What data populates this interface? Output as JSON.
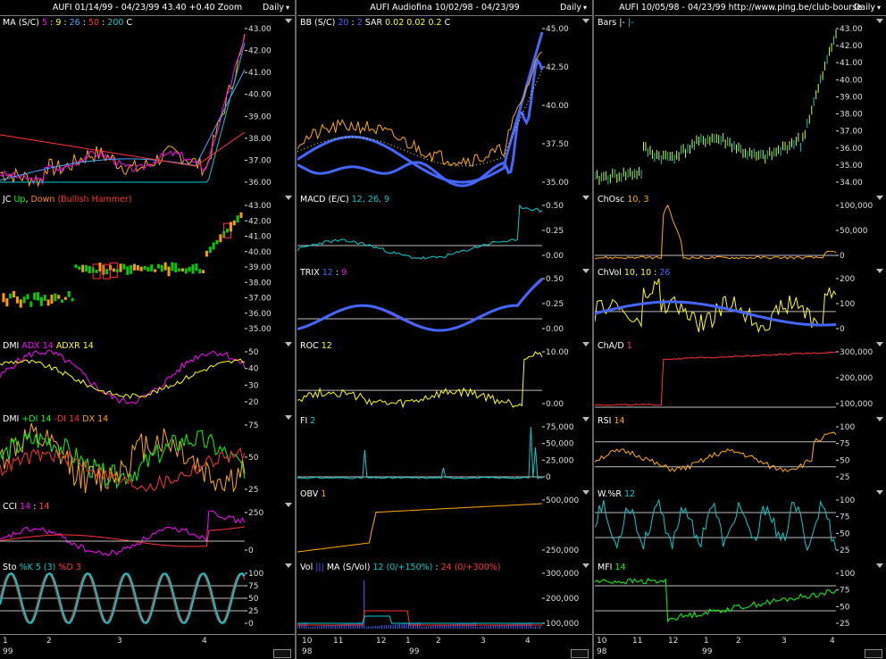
{
  "columns": [
    {
      "id": "c1",
      "header": "AUFI  01/14/99 - 04/23/99   43.40  +0.40   Zoom",
      "daily": "Daily",
      "panels": [
        {
          "id": "ma",
          "label": [
            [
              "MA (S/C) ",
              "#fff"
            ],
            [
              "5",
              "#f0f"
            ],
            [
              " : ",
              "#fff"
            ],
            [
              "9",
              "#ff0"
            ],
            [
              " : ",
              "#fff"
            ],
            [
              "26",
              "#4af"
            ],
            [
              " : ",
              "#fff"
            ],
            [
              "50",
              "#f33"
            ],
            [
              " : ",
              "#fff"
            ],
            [
              "200",
              "#0cc"
            ],
            [
              "   C ",
              "#fff"
            ]
          ],
          "ticks": [
            "43.00",
            "42.00",
            "41.00",
            "40.00",
            "39.00",
            "38.00",
            "37.00",
            "36.00"
          ]
        },
        {
          "id": "jc",
          "label": [
            [
              "JC ",
              "#fff"
            ],
            [
              "Up",
              "#0f0"
            ],
            [
              ", ",
              "#fff"
            ],
            [
              "Down",
              "#f80"
            ],
            [
              "  (Bullish Hammer)",
              "#f33"
            ]
          ],
          "ticks": [
            "43.00",
            "42.00",
            "41.00",
            "40.00",
            "39.00",
            "38.00",
            "37.00",
            "36.00",
            "35.00"
          ]
        },
        {
          "id": "dmi1",
          "label": [
            [
              "DMI  ",
              "#fff"
            ],
            [
              "ADX 14",
              "#f0f"
            ],
            [
              "  ",
              "#fff"
            ],
            [
              "ADXR 14",
              "#ff0"
            ]
          ],
          "ticks": [
            "50",
            "40",
            "30",
            "20"
          ]
        },
        {
          "id": "dmi2",
          "label": [
            [
              "DMI  ",
              "#fff"
            ],
            [
              "+DI 14",
              "#0f0"
            ],
            [
              "  ",
              "#fff"
            ],
            [
              "-DI 14",
              "#f33"
            ],
            [
              "  ",
              "#fff"
            ],
            [
              "DX 14",
              "#fa0"
            ]
          ],
          "ticks": [
            "75",
            "50",
            "25"
          ]
        },
        {
          "id": "cci",
          "label": [
            [
              "CCI  ",
              "#fff"
            ],
            [
              "14",
              "#f0f"
            ],
            [
              " : ",
              "#fff"
            ],
            [
              "14",
              "#f44"
            ]
          ],
          "ticks": [
            "250",
            "0"
          ]
        },
        {
          "id": "sto",
          "label": [
            [
              "Sto  ",
              "#fff"
            ],
            [
              "%K 5 (3)",
              "#0cc"
            ],
            [
              "  ",
              "#fff"
            ],
            [
              "%D 3",
              "#f33"
            ]
          ],
          "ticks": [
            "100",
            "75",
            "50",
            "25",
            "0"
          ]
        }
      ],
      "xlabels": [
        "1",
        "2",
        "3",
        "4"
      ],
      "years": [
        "99"
      ]
    },
    {
      "id": "c2",
      "header": "AUFI  Audiofina  10/02/98 - 04/23/99",
      "daily": "Daily",
      "panels": [
        {
          "id": "bb",
          "label": [
            [
              "BB (S/C)  ",
              "#fff"
            ],
            [
              "20",
              "#46f"
            ],
            [
              " : ",
              "#fff"
            ],
            [
              "2",
              "#46f"
            ],
            [
              "   SAR  ",
              "#fff"
            ],
            [
              "0.02",
              "#ff0"
            ],
            [
              " ",
              "#fff"
            ],
            [
              "0.02",
              "#ff0"
            ],
            [
              " ",
              "#fff"
            ],
            [
              "0.2",
              "#ff0"
            ],
            [
              "   C ",
              "#fff"
            ]
          ],
          "ticks": [
            "45.00",
            "42.50",
            "40.00",
            "37.50",
            "35.00"
          ]
        },
        {
          "id": "macd",
          "label": [
            [
              "MACD (E/C)  ",
              "#fff"
            ],
            [
              "12, 26, 9",
              "#0cc"
            ]
          ],
          "ticks": [
            "0.50",
            "0.25",
            "0.00"
          ]
        },
        {
          "id": "trix",
          "label": [
            [
              "TRIX  ",
              "#fff"
            ],
            [
              "12",
              "#46f"
            ],
            [
              " : ",
              "#fff"
            ],
            [
              "9",
              "#f0f"
            ]
          ],
          "ticks": [
            "0.50",
            "0.25",
            "0.00"
          ]
        },
        {
          "id": "roc",
          "label": [
            [
              "ROC  ",
              "#fff"
            ],
            [
              "12",
              "#ff0"
            ]
          ],
          "ticks": [
            "10.00",
            "0.00"
          ]
        },
        {
          "id": "fi",
          "label": [
            [
              "FI  ",
              "#fff"
            ],
            [
              "2",
              "#0cc"
            ]
          ],
          "ticks": [
            "75,000",
            "50,000",
            "25,000",
            "0"
          ]
        },
        {
          "id": "obv",
          "label": [
            [
              "OBV  ",
              "#fff"
            ],
            [
              "1",
              "#fa0"
            ]
          ],
          "ticks": [
            "500,000",
            "250,000"
          ]
        },
        {
          "id": "vol",
          "label": [
            [
              "Vol  ",
              "#fff"
            ],
            [
              "|||",
              "#46f"
            ],
            [
              "   MA (S/Vol)  ",
              "#fff"
            ],
            [
              "12 (0/+150%)",
              "#0cc"
            ],
            [
              " : ",
              "#fff"
            ],
            [
              "24 (0/+300%)",
              "#f33"
            ]
          ],
          "ticks": [
            "300,000",
            "200,000",
            "100,000"
          ]
        }
      ],
      "xlabels": [
        "10",
        "11",
        "12",
        "1",
        "2",
        "3",
        "4"
      ],
      "years": [
        "98",
        "99"
      ]
    },
    {
      "id": "c3",
      "header": "AUFI  10/05/98 - 04/23/99    http://www.ping.be/club-bourse",
      "daily": "Daily",
      "panels": [
        {
          "id": "bars",
          "label": [
            [
              "Bars ",
              "#fff"
            ],
            [
              "|- ",
              "#fff"
            ],
            [
              "|-",
              "#0cc"
            ]
          ],
          "ticks": [
            "43.00",
            "42.00",
            "41.00",
            "40.00",
            "39.00",
            "38.00",
            "37.00",
            "36.00",
            "35.00",
            "34.00"
          ]
        },
        {
          "id": "chosc",
          "label": [
            [
              "ChOsc  ",
              "#fff"
            ],
            [
              "10, 3",
              "#fa0"
            ]
          ],
          "ticks": [
            "100,000",
            "50,000",
            "0"
          ]
        },
        {
          "id": "chvol",
          "label": [
            [
              "ChVol  ",
              "#fff"
            ],
            [
              "10, 10",
              "#ff0"
            ],
            [
              " : ",
              "#fff"
            ],
            [
              "26",
              "#46f"
            ]
          ],
          "ticks": [
            "200",
            "100",
            "0"
          ]
        },
        {
          "id": "chad",
          "label": [
            [
              "ChA/D  ",
              "#fff"
            ],
            [
              "1",
              "#f33"
            ]
          ],
          "ticks": [
            "300,000",
            "200,000",
            "100,000"
          ]
        },
        {
          "id": "rsi",
          "label": [
            [
              "RSI  ",
              "#fff"
            ],
            [
              "14",
              "#fa0"
            ]
          ],
          "ticks": [
            "100",
            "75",
            "50",
            "25"
          ]
        },
        {
          "id": "wr",
          "label": [
            [
              "W.%R  ",
              "#fff"
            ],
            [
              "12",
              "#0cc"
            ]
          ],
          "ticks": [
            "100",
            "75",
            "50",
            "25"
          ]
        },
        {
          "id": "mfi",
          "label": [
            [
              "MFI  ",
              "#fff"
            ],
            [
              "14",
              "#0f0"
            ]
          ],
          "ticks": [
            "100",
            "75",
            "50",
            "25"
          ]
        }
      ],
      "xlabels": [
        "10",
        "11",
        "12",
        "1",
        "2",
        "3",
        "4"
      ],
      "years": [
        "98",
        "99"
      ]
    }
  ]
}
